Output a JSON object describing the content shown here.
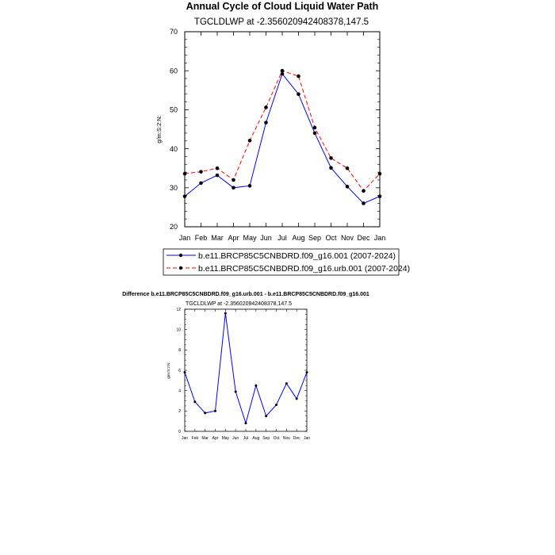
{
  "chart_data": [
    {
      "type": "line",
      "title": "Annual Cycle of Cloud Liquid Water Path",
      "subtitle": "TGCLDLWP at -2.356020942408378,147.5",
      "xlabel": "",
      "ylabel": "g/m:S:2:N:",
      "categories": [
        "Jan",
        "Feb",
        "Mar",
        "Apr",
        "May",
        "Jun",
        "Jul",
        "Aug",
        "Sep",
        "Oct",
        "Nov",
        "Dec",
        "Jan"
      ],
      "ylim": [
        20,
        70
      ],
      "yticks": [
        20,
        30,
        40,
        50,
        60,
        70
      ],
      "series": [
        {
          "name": "b.e11.BRCP85C5CNBDRD.f09_g16.001 (2007-2024)",
          "color": "#0000ff",
          "dash": "solid",
          "values": [
            27.8,
            31.2,
            33.2,
            30.0,
            30.5,
            46.7,
            59.2,
            54.0,
            44.0,
            35.1,
            30.3,
            26.0,
            27.8
          ]
        },
        {
          "name": "b.e11.BRCP85C5CNBDRD.f09_g16.urb.001 (2007-2024)",
          "color": "#ff0000",
          "dash": "dashed",
          "values": [
            33.6,
            34.1,
            35.0,
            32.0,
            42.1,
            50.6,
            60.0,
            58.6,
            45.4,
            37.6,
            35.0,
            29.2,
            33.6
          ]
        }
      ],
      "legend_position": "bottom",
      "grid": false
    },
    {
      "type": "line",
      "title": "Difference b.e11.BRCP85C5CNBDRD.f09_g16.urb.001 - b.e11.BRCP85C5CNBDRD.f09_g16.001",
      "subtitle": "TGCLDLWP at -2.356020942408378,147.5",
      "xlabel": "",
      "ylabel": "g/m:S:2:N:",
      "categories": [
        "Jan",
        "Feb",
        "Mar",
        "Apr",
        "May",
        "Jun",
        "Jul",
        "Aug",
        "Sep",
        "Oct",
        "Nov",
        "Dec",
        "Jan"
      ],
      "ylim": [
        0,
        12
      ],
      "yticks": [
        0,
        2,
        4,
        6,
        8,
        10,
        12
      ],
      "series": [
        {
          "color": "#0000ff",
          "dash": "solid",
          "values": [
            5.8,
            2.9,
            1.8,
            2.0,
            11.6,
            3.9,
            0.8,
            4.5,
            1.5,
            2.6,
            4.7,
            3.2,
            5.8
          ]
        }
      ],
      "grid": false
    }
  ]
}
